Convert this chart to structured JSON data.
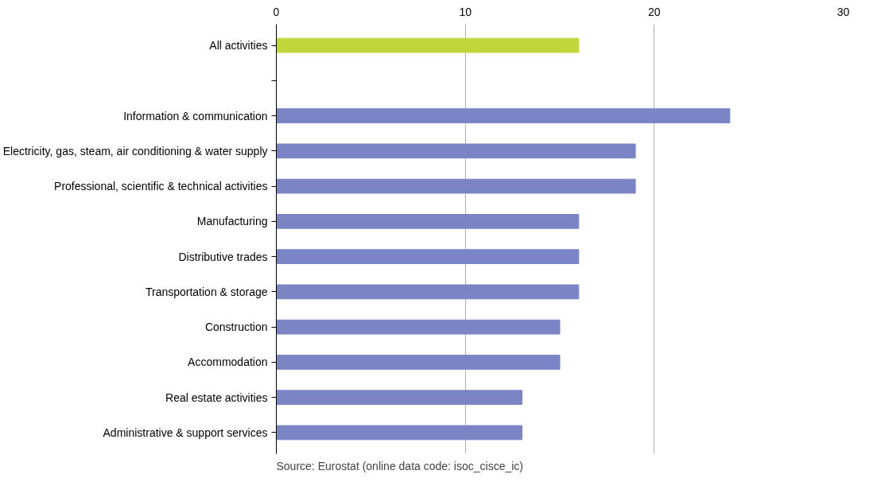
{
  "chart_data": {
    "type": "bar",
    "orientation": "horizontal",
    "categories": [
      "All activities",
      null,
      "Information & communication",
      "Electricity, gas, steam, air conditioning & water supply",
      "Professional, scientific & technical activities",
      "Manufacturing",
      "Distributive trades",
      "Transportation & storage",
      "Construction",
      "Accommodation",
      "Real estate activities",
      "Administrative & support services"
    ],
    "values": [
      16,
      null,
      24,
      19,
      19,
      16,
      16,
      16,
      15,
      15,
      13,
      13
    ],
    "colors": [
      "#c0d63a",
      null,
      "#7b85c6",
      "#7b85c6",
      "#7b85c6",
      "#7b85c6",
      "#7b85c6",
      "#7b85c6",
      "#7b85c6",
      "#7b85c6",
      "#7b85c6",
      "#7b85c6"
    ],
    "xlim": [
      0,
      30
    ],
    "xticks": [
      0,
      10,
      20,
      30
    ],
    "grid": "x",
    "annotations": [
      "Source: Eurostat (online data code: isoc_cisce_ic)"
    ]
  }
}
